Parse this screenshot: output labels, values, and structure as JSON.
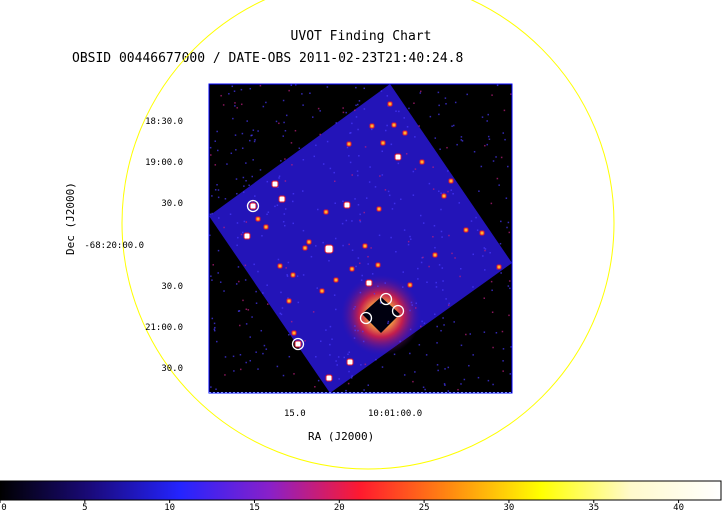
{
  "chart_data": {
    "type": "heatmap",
    "title": "UVOT Finding Chart",
    "subtitle": "OBSID 00446677000 / DATE-OBS 2011-02-23T21:40:24.8",
    "xlabel": "RA (J2000)",
    "ylabel": "Dec (J2000)",
    "x_ticks": [
      "15.0",
      "10:01:00.0"
    ],
    "y_ticks": [
      "18:30.0",
      "19:00.0",
      "30.0",
      "-68:20:00.0",
      "30.0",
      "21:00.0",
      "30.0"
    ],
    "colorbar": {
      "ticks": [
        0,
        5,
        10,
        15,
        20,
        25,
        30,
        35,
        40
      ],
      "range": [
        0,
        42.5
      ],
      "colormap": [
        "#000000",
        "#1a0a7a",
        "#2424ff",
        "#8a20c8",
        "#ff1a2e",
        "#ff8a10",
        "#ffff00",
        "#fffacc",
        "#ffffff"
      ]
    },
    "colors": {
      "field_circle": "#ffff00",
      "image_background": "#1a10a0",
      "frame": "#0000ff"
    }
  }
}
